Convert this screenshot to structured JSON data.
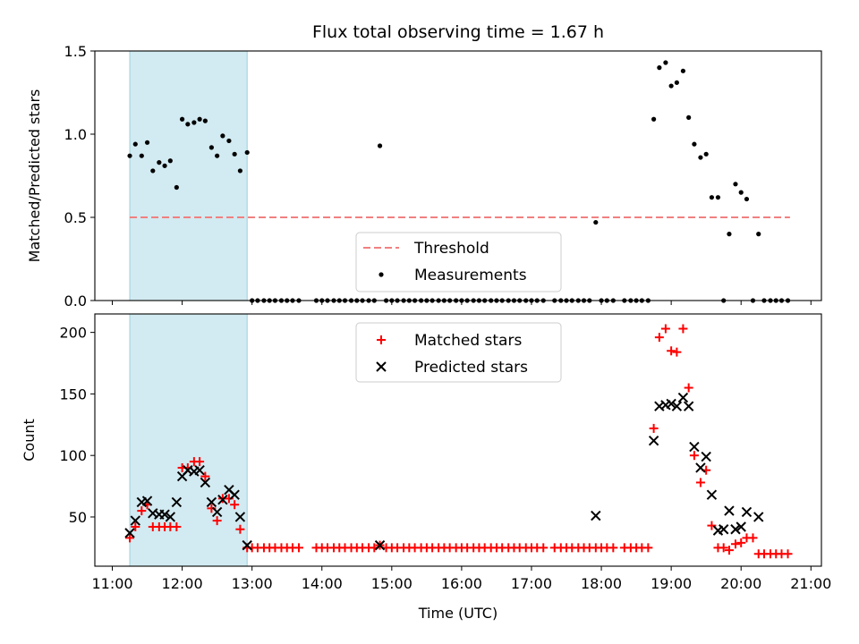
{
  "title": "Flux total observing time = 1.67 h",
  "colors": {
    "threshold": "#f08080",
    "measurement": "#000000",
    "matched": "#ff0000",
    "predicted": "#000000",
    "shade": "#add8e6"
  },
  "chart_data": [
    {
      "type": "scatter",
      "ylabel": "Matched/Predicted stars",
      "xlim": [
        10.75,
        21.15
      ],
      "ylim": [
        0,
        1.5
      ],
      "yticks": [
        0,
        0.5,
        1.0,
        1.5
      ],
      "ytick_labels": [
        "0.0",
        "0.5",
        "1.0",
        "1.5"
      ],
      "shaded_interval": [
        11.25,
        12.93
      ],
      "threshold": {
        "label": "Threshold",
        "value": 0.5,
        "x_range": [
          11.25,
          20.7
        ]
      },
      "legend": {
        "location": "lower-center",
        "entries": [
          "Threshold",
          "Measurements"
        ]
      },
      "series": [
        {
          "name": "Measurements",
          "x": [
            11.25,
            11.33,
            11.42,
            11.5,
            11.58,
            11.67,
            11.75,
            11.83,
            11.92,
            12.0,
            12.08,
            12.17,
            12.25,
            12.33,
            12.42,
            12.5,
            12.58,
            12.67,
            12.75,
            12.83,
            12.93,
            14.83,
            17.92,
            18.75,
            18.83,
            18.92,
            19.0,
            19.08,
            19.17,
            19.25,
            19.33,
            19.42,
            19.5,
            19.58,
            19.67,
            19.83,
            19.92,
            20.0,
            20.08,
            20.25
          ],
          "y": [
            0.87,
            0.94,
            0.87,
            0.95,
            0.78,
            0.83,
            0.81,
            0.84,
            0.68,
            1.09,
            1.06,
            1.07,
            1.09,
            1.08,
            0.92,
            0.87,
            0.99,
            0.96,
            0.88,
            0.78,
            0.89,
            0.93,
            0.47,
            1.09,
            1.4,
            1.43,
            1.29,
            1.31,
            1.38,
            1.1,
            0.94,
            0.86,
            0.88,
            0.62,
            0.62,
            0.4,
            0.7,
            0.65,
            0.61,
            0.4
          ]
        },
        {
          "name": "Measurements (zero)",
          "x": [
            13.0,
            13.08,
            13.17,
            13.25,
            13.33,
            13.42,
            13.5,
            13.58,
            13.67,
            13.92,
            14.0,
            14.08,
            14.17,
            14.25,
            14.33,
            14.42,
            14.5,
            14.58,
            14.67,
            14.75,
            14.92,
            15.0,
            15.08,
            15.17,
            15.25,
            15.33,
            15.42,
            15.5,
            15.58,
            15.67,
            15.75,
            15.83,
            15.92,
            16.0,
            16.08,
            16.17,
            16.25,
            16.33,
            16.42,
            16.5,
            16.58,
            16.67,
            16.75,
            16.83,
            16.92,
            17.0,
            17.08,
            17.17,
            17.33,
            17.42,
            17.5,
            17.58,
            17.67,
            17.75,
            17.83,
            18.0,
            18.08,
            18.17,
            18.33,
            18.42,
            18.5,
            18.58,
            18.67,
            19.75,
            20.17,
            20.33,
            20.42,
            20.5,
            20.58,
            20.67
          ],
          "y": [
            0,
            0,
            0,
            0,
            0,
            0,
            0,
            0,
            0,
            0,
            0,
            0,
            0,
            0,
            0,
            0,
            0,
            0,
            0,
            0,
            0,
            0,
            0,
            0,
            0,
            0,
            0,
            0,
            0,
            0,
            0,
            0,
            0,
            0,
            0,
            0,
            0,
            0,
            0,
            0,
            0,
            0,
            0,
            0,
            0,
            0,
            0,
            0,
            0,
            0,
            0,
            0,
            0,
            0,
            0,
            0,
            0,
            0,
            0,
            0,
            0,
            0,
            0,
            0,
            0,
            0,
            0,
            0,
            0,
            0
          ]
        }
      ]
    },
    {
      "type": "scatter",
      "ylabel": "Count",
      "xlabel": "Time (UTC)",
      "xlim": [
        10.75,
        21.15
      ],
      "ylim": [
        10,
        215
      ],
      "yticks": [
        50,
        100,
        150,
        200
      ],
      "ytick_labels": [
        "50",
        "100",
        "150",
        "200"
      ],
      "xticks": [
        11,
        12,
        13,
        14,
        15,
        16,
        17,
        18,
        19,
        20,
        21
      ],
      "xtick_labels": [
        "11:00",
        "12:00",
        "13:00",
        "14:00",
        "15:00",
        "16:00",
        "17:00",
        "18:00",
        "19:00",
        "20:00",
        "21:00"
      ],
      "shaded_interval": [
        11.25,
        12.93
      ],
      "legend": {
        "location": "upper-center",
        "entries": [
          "Matched stars",
          "Predicted stars"
        ]
      },
      "series": [
        {
          "name": "Matched stars",
          "marker": "plus",
          "x": [
            11.25,
            11.33,
            11.42,
            11.5,
            11.58,
            11.67,
            11.75,
            11.83,
            11.92,
            12.0,
            12.08,
            12.17,
            12.25,
            12.33,
            12.42,
            12.5,
            12.58,
            12.67,
            12.75,
            12.83,
            12.93,
            13.0,
            13.08,
            13.17,
            13.25,
            13.33,
            13.42,
            13.5,
            13.58,
            13.67,
            13.92,
            14.0,
            14.08,
            14.17,
            14.25,
            14.33,
            14.42,
            14.5,
            14.58,
            14.67,
            14.75,
            14.83,
            14.92,
            15.0,
            15.08,
            15.17,
            15.25,
            15.33,
            15.42,
            15.5,
            15.58,
            15.67,
            15.75,
            15.83,
            15.92,
            16.0,
            16.08,
            16.17,
            16.25,
            16.33,
            16.42,
            16.5,
            16.58,
            16.67,
            16.75,
            16.83,
            16.92,
            17.0,
            17.08,
            17.17,
            17.33,
            17.42,
            17.5,
            17.58,
            17.67,
            17.75,
            17.83,
            17.92,
            18.0,
            18.08,
            18.17,
            18.33,
            18.42,
            18.5,
            18.58,
            18.67,
            18.75,
            18.83,
            18.92,
            19.0,
            19.08,
            19.17,
            19.25,
            19.33,
            19.42,
            19.5,
            19.58,
            19.67,
            19.75,
            19.83,
            19.92,
            20.0,
            20.08,
            20.17,
            20.25,
            20.33,
            20.42,
            20.5,
            20.58,
            20.67
          ],
          "y": [
            33,
            42,
            55,
            60,
            42,
            42,
            42,
            42,
            42,
            90,
            90,
            95,
            95,
            83,
            57,
            47,
            65,
            65,
            60,
            40,
            25,
            25,
            25,
            25,
            25,
            25,
            25,
            25,
            25,
            25,
            25,
            25,
            25,
            25,
            25,
            25,
            25,
            25,
            25,
            25,
            25,
            27,
            25,
            25,
            25,
            25,
            25,
            25,
            25,
            25,
            25,
            25,
            25,
            25,
            25,
            25,
            25,
            25,
            25,
            25,
            25,
            25,
            25,
            25,
            25,
            25,
            25,
            25,
            25,
            25,
            25,
            25,
            25,
            25,
            25,
            25,
            25,
            25,
            25,
            25,
            25,
            25,
            25,
            25,
            25,
            25,
            122,
            196,
            203,
            185,
            184,
            203,
            155,
            100,
            78,
            88,
            43,
            25,
            25,
            23,
            28,
            29,
            33,
            33,
            20,
            20,
            20,
            20,
            20,
            20
          ]
        },
        {
          "name": "Predicted stars",
          "marker": "x",
          "x": [
            11.25,
            11.33,
            11.42,
            11.5,
            11.58,
            11.67,
            11.75,
            11.83,
            11.92,
            12.0,
            12.08,
            12.17,
            12.25,
            12.33,
            12.42,
            12.5,
            12.58,
            12.67,
            12.75,
            12.83,
            12.93,
            14.83,
            17.92,
            18.75,
            18.83,
            18.92,
            19.0,
            19.08,
            19.17,
            19.25,
            19.33,
            19.42,
            19.5,
            19.58,
            19.67,
            19.75,
            19.83,
            19.92,
            20.0,
            20.08,
            20.25
          ],
          "y": [
            37,
            47,
            62,
            63,
            53,
            52,
            52,
            50,
            62,
            83,
            88,
            87,
            88,
            78,
            62,
            54,
            64,
            72,
            68,
            50,
            27,
            27,
            51,
            112,
            140,
            141,
            142,
            140,
            147,
            140,
            107,
            90,
            99,
            68,
            39,
            40,
            55,
            40,
            42,
            54,
            50
          ]
        }
      ]
    }
  ]
}
